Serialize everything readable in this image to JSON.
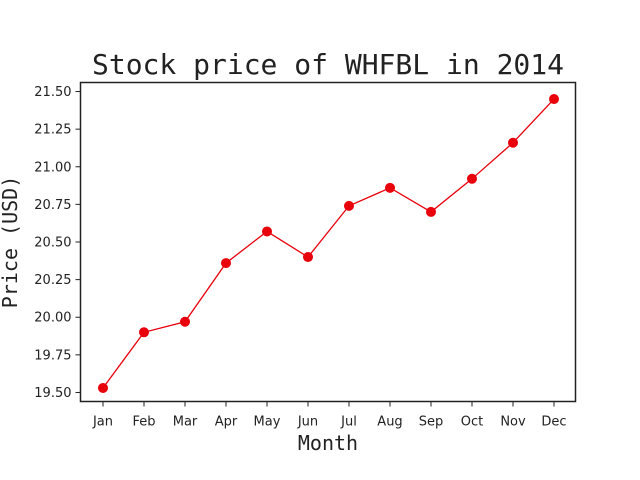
{
  "chart_data": {
    "type": "line",
    "title": "Stock price of WHFBL in 2014",
    "xlabel": "Month",
    "ylabel": "Price (USD)",
    "categories": [
      "Jan",
      "Feb",
      "Mar",
      "Apr",
      "May",
      "Jun",
      "Jul",
      "Aug",
      "Sep",
      "Oct",
      "Nov",
      "Dec"
    ],
    "series": [
      {
        "values": [
          19.53,
          19.9,
          19.97,
          20.36,
          20.57,
          20.4,
          20.74,
          20.86,
          20.7,
          20.92,
          21.16,
          21.45
        ],
        "color": "#e8000b",
        "marker": "circle"
      }
    ],
    "ylim": [
      19.44,
      21.56
    ],
    "yticks": [
      "19.50",
      "19.75",
      "20.00",
      "20.25",
      "20.50",
      "20.75",
      "21.00",
      "21.25",
      "21.50"
    ],
    "grid": false,
    "legend": false
  }
}
